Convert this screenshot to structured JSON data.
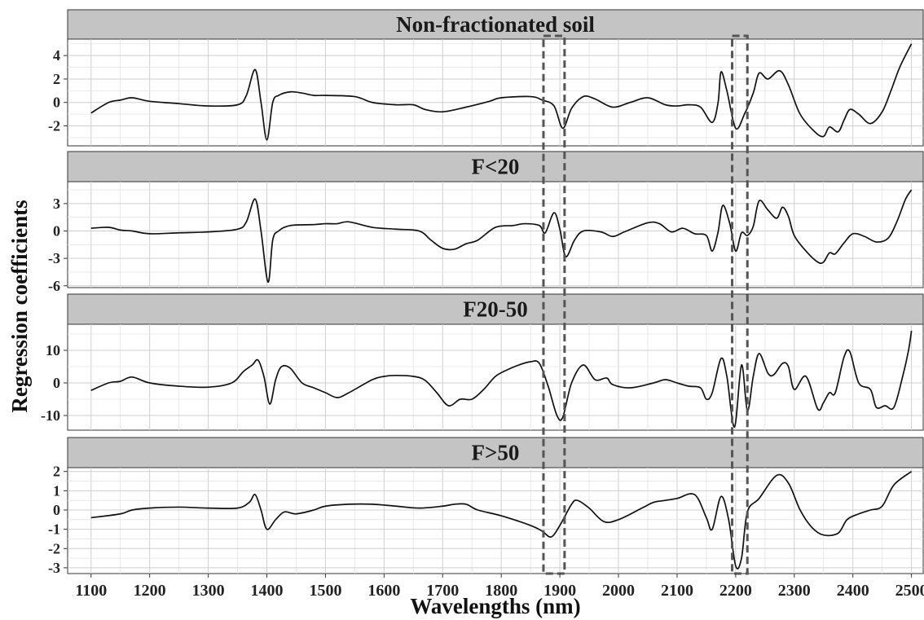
{
  "chart_data": {
    "type": "line",
    "xlabel": "Wavelengths (nm)",
    "ylabel": "Regression coefficients",
    "xlim": [
      1060,
      2520
    ],
    "x_ticks": [
      1100,
      1200,
      1300,
      1400,
      1500,
      1600,
      1700,
      1800,
      1900,
      2000,
      2100,
      2200,
      2300,
      2400,
      2500
    ],
    "grid": true,
    "highlight_bands": [
      [
        1872,
        1908
      ],
      [
        2194,
        2220
      ]
    ],
    "panels": [
      {
        "title": "Non-fractionated soil",
        "ylim": [
          -3.7,
          5.4
        ],
        "y_ticks": [
          4,
          2,
          0,
          -2
        ],
        "points": [
          [
            1100,
            -0.9
          ],
          [
            1130,
            0.0
          ],
          [
            1150,
            0.2
          ],
          [
            1170,
            0.4
          ],
          [
            1200,
            0.1
          ],
          [
            1250,
            -0.1
          ],
          [
            1300,
            -0.3
          ],
          [
            1350,
            -0.2
          ],
          [
            1365,
            0.6
          ],
          [
            1380,
            2.8
          ],
          [
            1390,
            0.0
          ],
          [
            1400,
            -3.2
          ],
          [
            1410,
            0.0
          ],
          [
            1420,
            0.6
          ],
          [
            1440,
            0.9
          ],
          [
            1460,
            0.8
          ],
          [
            1480,
            0.6
          ],
          [
            1500,
            0.6
          ],
          [
            1550,
            0.5
          ],
          [
            1580,
            0.0
          ],
          [
            1620,
            -0.2
          ],
          [
            1650,
            -0.2
          ],
          [
            1670,
            -0.6
          ],
          [
            1700,
            -0.8
          ],
          [
            1740,
            -0.4
          ],
          [
            1780,
            0.1
          ],
          [
            1800,
            0.4
          ],
          [
            1850,
            0.5
          ],
          [
            1870,
            0.2
          ],
          [
            1890,
            -0.3
          ],
          [
            1905,
            -2.2
          ],
          [
            1920,
            -0.5
          ],
          [
            1940,
            0.5
          ],
          [
            1960,
            0.3
          ],
          [
            1990,
            -0.4
          ],
          [
            2020,
            0.0
          ],
          [
            2050,
            0.4
          ],
          [
            2080,
            -0.2
          ],
          [
            2100,
            -0.3
          ],
          [
            2120,
            -0.2
          ],
          [
            2140,
            -0.4
          ],
          [
            2160,
            -1.7
          ],
          [
            2170,
            0.0
          ],
          [
            2175,
            2.6
          ],
          [
            2185,
            1.0
          ],
          [
            2200,
            -2.2
          ],
          [
            2215,
            -1.0
          ],
          [
            2230,
            0.8
          ],
          [
            2240,
            2.5
          ],
          [
            2255,
            2.0
          ],
          [
            2275,
            2.7
          ],
          [
            2290,
            1.5
          ],
          [
            2310,
            -1.0
          ],
          [
            2335,
            -2.5
          ],
          [
            2350,
            -2.9
          ],
          [
            2360,
            -2.1
          ],
          [
            2375,
            -2.5
          ],
          [
            2385,
            -1.5
          ],
          [
            2395,
            -0.6
          ],
          [
            2410,
            -1.0
          ],
          [
            2430,
            -1.8
          ],
          [
            2450,
            -0.8
          ],
          [
            2465,
            1.0
          ],
          [
            2480,
            3.0
          ],
          [
            2500,
            5.0
          ]
        ]
      },
      {
        "title": "F<20",
        "ylim": [
          -6.2,
          5.4
        ],
        "y_ticks": [
          3,
          0,
          -3,
          -6
        ],
        "points": [
          [
            1100,
            0.3
          ],
          [
            1130,
            0.4
          ],
          [
            1150,
            0.1
          ],
          [
            1170,
            0.0
          ],
          [
            1200,
            -0.3
          ],
          [
            1250,
            -0.2
          ],
          [
            1300,
            -0.1
          ],
          [
            1350,
            0.2
          ],
          [
            1365,
            1.0
          ],
          [
            1380,
            3.5
          ],
          [
            1390,
            0.0
          ],
          [
            1402,
            -5.6
          ],
          [
            1410,
            -1.0
          ],
          [
            1420,
            0.0
          ],
          [
            1440,
            0.6
          ],
          [
            1480,
            0.7
          ],
          [
            1500,
            0.8
          ],
          [
            1520,
            0.8
          ],
          [
            1540,
            1.0
          ],
          [
            1580,
            0.4
          ],
          [
            1620,
            0.2
          ],
          [
            1660,
            0.0
          ],
          [
            1680,
            -1.0
          ],
          [
            1700,
            -1.9
          ],
          [
            1720,
            -2.0
          ],
          [
            1740,
            -1.4
          ],
          [
            1760,
            -1.0
          ],
          [
            1790,
            0.4
          ],
          [
            1820,
            0.6
          ],
          [
            1840,
            0.8
          ],
          [
            1865,
            0.6
          ],
          [
            1875,
            -0.2
          ],
          [
            1890,
            2.0
          ],
          [
            1900,
            0.2
          ],
          [
            1910,
            -2.8
          ],
          [
            1925,
            -1.0
          ],
          [
            1940,
            0.0
          ],
          [
            1970,
            -0.1
          ],
          [
            1990,
            -0.6
          ],
          [
            2010,
            -0.1
          ],
          [
            2050,
            0.9
          ],
          [
            2070,
            0.8
          ],
          [
            2090,
            -0.1
          ],
          [
            2110,
            0.3
          ],
          [
            2130,
            -0.3
          ],
          [
            2150,
            -0.5
          ],
          [
            2160,
            -2.2
          ],
          [
            2170,
            -0.1
          ],
          [
            2178,
            2.8
          ],
          [
            2190,
            0.8
          ],
          [
            2200,
            -2.2
          ],
          [
            2210,
            -0.2
          ],
          [
            2220,
            -0.5
          ],
          [
            2230,
            0.5
          ],
          [
            2240,
            3.3
          ],
          [
            2255,
            2.3
          ],
          [
            2270,
            1.4
          ],
          [
            2280,
            2.6
          ],
          [
            2290,
            1.6
          ],
          [
            2300,
            -0.5
          ],
          [
            2320,
            -2.2
          ],
          [
            2340,
            -3.4
          ],
          [
            2350,
            -3.4
          ],
          [
            2360,
            -2.4
          ],
          [
            2370,
            -2.5
          ],
          [
            2385,
            -1.3
          ],
          [
            2400,
            -0.3
          ],
          [
            2420,
            -0.6
          ],
          [
            2440,
            -1.2
          ],
          [
            2460,
            -0.8
          ],
          [
            2475,
            1.0
          ],
          [
            2490,
            3.5
          ],
          [
            2500,
            4.5
          ]
        ]
      },
      {
        "title": "F20-50",
        "ylim": [
          -14.5,
          18.0
        ],
        "y_ticks": [
          10,
          0,
          -10
        ],
        "points": [
          [
            1100,
            -2.3
          ],
          [
            1130,
            0.0
          ],
          [
            1150,
            0.5
          ],
          [
            1170,
            1.8
          ],
          [
            1200,
            0.0
          ],
          [
            1250,
            -1.0
          ],
          [
            1300,
            -1.3
          ],
          [
            1340,
            0.0
          ],
          [
            1360,
            3.5
          ],
          [
            1375,
            5.5
          ],
          [
            1385,
            7.0
          ],
          [
            1395,
            2.0
          ],
          [
            1405,
            -6.5
          ],
          [
            1415,
            1.0
          ],
          [
            1425,
            5.0
          ],
          [
            1440,
            4.5
          ],
          [
            1460,
            0.0
          ],
          [
            1480,
            -1.5
          ],
          [
            1500,
            -3.0
          ],
          [
            1520,
            -4.5
          ],
          [
            1540,
            -3.0
          ],
          [
            1580,
            1.0
          ],
          [
            1600,
            2.0
          ],
          [
            1620,
            2.3
          ],
          [
            1650,
            2.0
          ],
          [
            1670,
            0.8
          ],
          [
            1690,
            -3.0
          ],
          [
            1710,
            -7.0
          ],
          [
            1730,
            -5.0
          ],
          [
            1750,
            -5.0
          ],
          [
            1770,
            -2.0
          ],
          [
            1790,
            2.0
          ],
          [
            1810,
            4.0
          ],
          [
            1830,
            5.5
          ],
          [
            1850,
            6.5
          ],
          [
            1865,
            6.0
          ],
          [
            1880,
            -1.0
          ],
          [
            1895,
            -10.0
          ],
          [
            1905,
            -10.5
          ],
          [
            1920,
            0.0
          ],
          [
            1940,
            5.5
          ],
          [
            1960,
            1.0
          ],
          [
            1980,
            1.5
          ],
          [
            1990,
            -0.5
          ],
          [
            2020,
            -1.5
          ],
          [
            2060,
            0.0
          ],
          [
            2080,
            1.0
          ],
          [
            2100,
            0.0
          ],
          [
            2120,
            -1.0
          ],
          [
            2140,
            -1.5
          ],
          [
            2150,
            -5.0
          ],
          [
            2160,
            -3.0
          ],
          [
            2175,
            7.5
          ],
          [
            2185,
            2.0
          ],
          [
            2198,
            -13.5
          ],
          [
            2210,
            5.5
          ],
          [
            2220,
            -8.5
          ],
          [
            2230,
            2.0
          ],
          [
            2240,
            9.0
          ],
          [
            2255,
            3.0
          ],
          [
            2265,
            2.5
          ],
          [
            2280,
            6.0
          ],
          [
            2290,
            5.0
          ],
          [
            2300,
            -2.0
          ],
          [
            2320,
            2.0
          ],
          [
            2340,
            -8.0
          ],
          [
            2350,
            -6.0
          ],
          [
            2360,
            -3.0
          ],
          [
            2370,
            -3.0
          ],
          [
            2385,
            8.0
          ],
          [
            2395,
            9.5
          ],
          [
            2410,
            0.0
          ],
          [
            2430,
            -2.0
          ],
          [
            2440,
            -7.5
          ],
          [
            2455,
            -7.0
          ],
          [
            2470,
            -7.5
          ],
          [
            2485,
            2.0
          ],
          [
            2495,
            10.0
          ],
          [
            2500,
            16.0
          ]
        ]
      },
      {
        "title": "F>50",
        "ylim": [
          -3.3,
          2.2
        ],
        "y_ticks": [
          2,
          1,
          0,
          -1,
          -2,
          -3
        ],
        "points": [
          [
            1100,
            -0.4
          ],
          [
            1150,
            -0.2
          ],
          [
            1170,
            0.0
          ],
          [
            1200,
            0.1
          ],
          [
            1250,
            0.15
          ],
          [
            1300,
            0.1
          ],
          [
            1350,
            0.1
          ],
          [
            1370,
            0.4
          ],
          [
            1380,
            0.8
          ],
          [
            1390,
            0.0
          ],
          [
            1400,
            -1.0
          ],
          [
            1415,
            -0.5
          ],
          [
            1430,
            -0.1
          ],
          [
            1450,
            -0.2
          ],
          [
            1480,
            0.0
          ],
          [
            1500,
            0.2
          ],
          [
            1540,
            0.3
          ],
          [
            1580,
            0.3
          ],
          [
            1620,
            0.2
          ],
          [
            1660,
            0.1
          ],
          [
            1700,
            0.2
          ],
          [
            1720,
            0.3
          ],
          [
            1740,
            0.3
          ],
          [
            1760,
            0.0
          ],
          [
            1800,
            -0.3
          ],
          [
            1850,
            -0.8
          ],
          [
            1870,
            -1.1
          ],
          [
            1885,
            -1.4
          ],
          [
            1900,
            -0.8
          ],
          [
            1920,
            0.3
          ],
          [
            1930,
            0.5
          ],
          [
            1950,
            0.1
          ],
          [
            1975,
            -0.6
          ],
          [
            2000,
            -0.5
          ],
          [
            2040,
            0.1
          ],
          [
            2060,
            0.4
          ],
          [
            2080,
            0.5
          ],
          [
            2100,
            0.6
          ],
          [
            2130,
            0.8
          ],
          [
            2150,
            -0.4
          ],
          [
            2160,
            -1.0
          ],
          [
            2175,
            0.7
          ],
          [
            2188,
            -0.5
          ],
          [
            2200,
            -2.9
          ],
          [
            2210,
            -2.5
          ],
          [
            2220,
            -0.1
          ],
          [
            2240,
            0.6
          ],
          [
            2270,
            1.8
          ],
          [
            2290,
            1.4
          ],
          [
            2310,
            0.0
          ],
          [
            2330,
            -0.9
          ],
          [
            2350,
            -1.3
          ],
          [
            2375,
            -1.2
          ],
          [
            2390,
            -0.5
          ],
          [
            2410,
            -0.2
          ],
          [
            2430,
            0.0
          ],
          [
            2450,
            0.2
          ],
          [
            2470,
            1.3
          ],
          [
            2500,
            2.0
          ]
        ]
      }
    ]
  }
}
